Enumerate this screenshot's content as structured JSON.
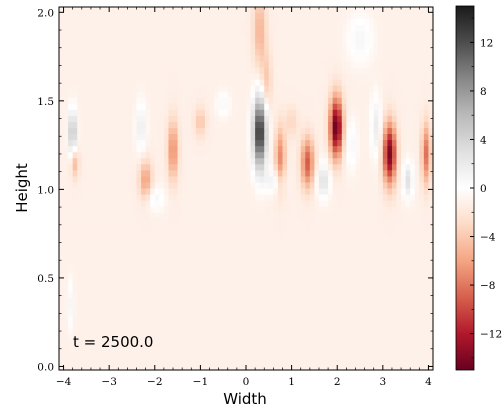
{
  "chart_data": {
    "type": "heatmap",
    "title": "",
    "xlabel": "Width",
    "ylabel": "Height",
    "xlim": [
      -4.1,
      4.1
    ],
    "ylim": [
      -0.02,
      2.03
    ],
    "x_ticks": [
      -4,
      -3,
      -2,
      -1,
      0,
      1,
      2,
      3,
      4
    ],
    "x_tick_labels": [
      "−4",
      "−3",
      "−2",
      "−1",
      "0",
      "1",
      "2",
      "3",
      "4"
    ],
    "y_ticks": [
      0.0,
      0.5,
      1.0,
      1.5,
      2.0
    ],
    "y_tick_labels": [
      "0.0",
      "0.5",
      "1.0",
      "1.5",
      "2.0"
    ],
    "annotation": "t = 2500.0",
    "colorbar": {
      "colormap": "RdGy",
      "vmin": -15,
      "vmax": 15,
      "ticks": [
        12,
        8,
        4,
        0,
        -4,
        -8,
        -12
      ],
      "tick_labels": [
        "12",
        "8",
        "4",
        "0",
        "−4",
        "−8",
        "−12"
      ],
      "colors": {
        "max": "#1a1a1a",
        "zero": "#ffffff",
        "min": "#67001f",
        "mid_neg": "#f4a582",
        "mid_pos": "#bababa"
      }
    },
    "background_value": -1.2,
    "features": [
      {
        "x": -3.8,
        "y": 1.32,
        "value": 7,
        "sx": 0.06,
        "sy": 0.09
      },
      {
        "x": -3.75,
        "y": 1.15,
        "value": -4,
        "sx": 0.06,
        "sy": 0.06
      },
      {
        "x": -3.85,
        "y": 0.35,
        "value": 2,
        "sx": 0.05,
        "sy": 0.1
      },
      {
        "x": -2.2,
        "y": 1.05,
        "value": -5,
        "sx": 0.1,
        "sy": 0.08
      },
      {
        "x": -1.6,
        "y": 1.22,
        "value": -6,
        "sx": 0.08,
        "sy": 0.12
      },
      {
        "x": -2.3,
        "y": 1.35,
        "value": 3,
        "sx": 0.08,
        "sy": 0.1
      },
      {
        "x": -1.0,
        "y": 1.38,
        "value": -3,
        "sx": 0.09,
        "sy": 0.06
      },
      {
        "x": -0.5,
        "y": 1.48,
        "value": 2,
        "sx": 0.1,
        "sy": 0.05
      },
      {
        "x": 0.3,
        "y": 1.32,
        "value": 15,
        "sx": 0.1,
        "sy": 0.14
      },
      {
        "x": 0.75,
        "y": 1.18,
        "value": -6,
        "sx": 0.08,
        "sy": 0.12
      },
      {
        "x": 1.0,
        "y": 1.38,
        "value": -2,
        "sx": 0.1,
        "sy": 0.06
      },
      {
        "x": 1.35,
        "y": 1.15,
        "value": -8,
        "sx": 0.1,
        "sy": 0.1
      },
      {
        "x": 1.7,
        "y": 1.05,
        "value": 4,
        "sx": 0.1,
        "sy": 0.07
      },
      {
        "x": 1.98,
        "y": 1.35,
        "value": -14,
        "sx": 0.1,
        "sy": 0.12
      },
      {
        "x": 2.3,
        "y": 1.25,
        "value": 2,
        "sx": 0.1,
        "sy": 0.1
      },
      {
        "x": 2.85,
        "y": 1.35,
        "value": 3,
        "sx": 0.08,
        "sy": 0.12
      },
      {
        "x": 3.15,
        "y": 1.2,
        "value": -13,
        "sx": 0.1,
        "sy": 0.12
      },
      {
        "x": 3.55,
        "y": 1.05,
        "value": 4,
        "sx": 0.08,
        "sy": 0.07
      },
      {
        "x": 3.95,
        "y": 1.2,
        "value": -7,
        "sx": 0.07,
        "sy": 0.12
      },
      {
        "x": 0.3,
        "y": 1.9,
        "value": -4,
        "sx": 0.1,
        "sy": 0.15
      },
      {
        "x": 0.45,
        "y": 1.6,
        "value": -3,
        "sx": 0.08,
        "sy": 0.12
      },
      {
        "x": 2.5,
        "y": 1.85,
        "value": 2,
        "sx": 0.2,
        "sy": 0.1
      },
      {
        "x": -2.0,
        "y": 0.95,
        "value": 2,
        "sx": 0.15,
        "sy": 0.05
      },
      {
        "x": 0.6,
        "y": 1.05,
        "value": 2.5,
        "sx": 0.15,
        "sy": 0.05
      }
    ]
  }
}
